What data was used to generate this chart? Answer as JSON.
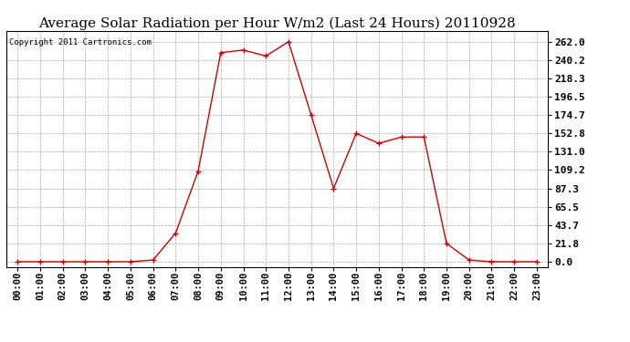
{
  "title": "Average Solar Radiation per Hour W/m2 (Last 24 Hours) 20110928",
  "copyright": "Copyright 2011 Cartronics.com",
  "hours": [
    "00:00",
    "01:00",
    "02:00",
    "03:00",
    "04:00",
    "05:00",
    "06:00",
    "07:00",
    "08:00",
    "09:00",
    "10:00",
    "11:00",
    "12:00",
    "13:00",
    "14:00",
    "15:00",
    "16:00",
    "17:00",
    "18:00",
    "19:00",
    "20:00",
    "21:00",
    "22:00",
    "23:00"
  ],
  "values": [
    0.0,
    0.0,
    0.0,
    0.0,
    0.0,
    0.0,
    2.0,
    34.0,
    108.0,
    249.0,
    252.0,
    245.0,
    262.0,
    175.0,
    87.3,
    152.8,
    141.0,
    148.5,
    148.5,
    21.8,
    2.0,
    0.0,
    0.0,
    0.0
  ],
  "line_color": "#cc0000",
  "marker_color": "#cc0000",
  "bg_color": "#ffffff",
  "plot_bg_color": "#ffffff",
  "grid_color": "#aaaaaa",
  "yticks": [
    0.0,
    21.8,
    43.7,
    65.5,
    87.3,
    109.2,
    131.0,
    152.8,
    174.7,
    196.5,
    218.3,
    240.2,
    262.0
  ],
  "ylim": [
    -6,
    275
  ],
  "title_fontsize": 11,
  "copyright_fontsize": 6.5,
  "tick_fontsize": 7.5,
  "ytick_fontsize": 8
}
